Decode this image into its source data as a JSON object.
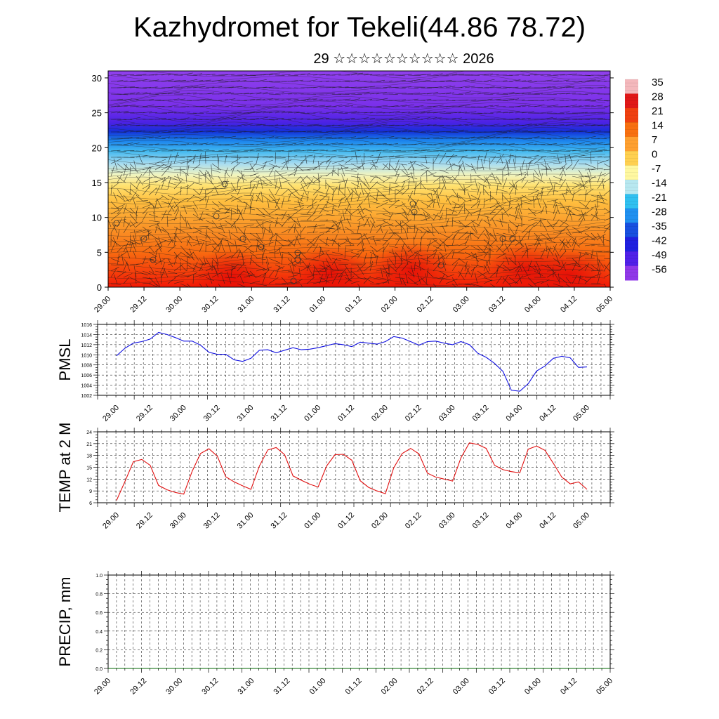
{
  "title": "Kazhydromet for Tekeli(44.86 78.72)",
  "subtitle": "29 ☆☆☆☆☆☆☆☆☆☆ 2026",
  "chart_data": [
    {
      "type": "heatmap",
      "description_key": "cross-section",
      "y_ticks": [
        "0",
        "5",
        "10",
        "15",
        "20",
        "25",
        "30"
      ],
      "ylim": [
        0,
        31
      ],
      "x_ticks": [
        "29.00",
        "29.12",
        "30.00",
        "30.12",
        "31.00",
        "31.12",
        "01.00",
        "01.12",
        "02.00",
        "02.12",
        "03.00",
        "03.12",
        "04.00",
        "04.12",
        "05.00"
      ],
      "colorbar": {
        "labels": [
          "35",
          "28",
          "21",
          "14",
          "7",
          "0",
          "-7",
          "-14",
          "-21",
          "-28",
          "-35",
          "-42",
          "-49",
          "-56"
        ],
        "colors": [
          "#f4b8bc",
          "#e01818",
          "#f04010",
          "#f87010",
          "#ffa030",
          "#ffd050",
          "#fff8a0",
          "#b8e8f0",
          "#30c0f0",
          "#2090f0",
          "#1850e0",
          "#2020e0",
          "#5020e8",
          "#9038e8"
        ]
      }
    },
    {
      "type": "line",
      "ylabel": "PMSL",
      "y_ticks": [
        "1002",
        "1004",
        "1006",
        "1008",
        "1010",
        "1012",
        "1014",
        "1016"
      ],
      "ylim": [
        1002,
        1016
      ],
      "x_ticks": [
        "29.00",
        "29.12",
        "30.00",
        "30.12",
        "31.00",
        "31.12",
        "01.00",
        "01.12",
        "02.00",
        "02.12",
        "03.00",
        "03.12",
        "04.00",
        "04.12",
        "05.00"
      ],
      "series": [
        {
          "color": "#1010e0",
          "values": [
            1009.8,
            1011.3,
            1012.3,
            1012.6,
            1013.1,
            1014.4,
            1014.0,
            1013.4,
            1012.7,
            1012.7,
            1011.9,
            1010.5,
            1010.1,
            1010.1,
            1009.0,
            1008.7,
            1009.3,
            1010.9,
            1011.0,
            1010.4,
            1010.9,
            1011.4,
            1011.0,
            1011.1,
            1011.4,
            1011.8,
            1012.2,
            1012.0,
            1011.6,
            1012.5,
            1012.3,
            1012.1,
            1012.6,
            1013.6,
            1013.3,
            1012.6,
            1011.9,
            1012.6,
            1012.7,
            1012.3,
            1012.0,
            1012.6,
            1012.0,
            1010.3,
            1009.5,
            1008.3,
            1006.7,
            1003.0,
            1002.8,
            1004.3,
            1006.8,
            1007.8,
            1009.3,
            1009.7,
            1009.4,
            1007.5,
            1007.6
          ]
        }
      ]
    },
    {
      "type": "line",
      "ylabel": "TEMP at 2 M",
      "y_ticks": [
        "6",
        "9",
        "12",
        "15",
        "18",
        "21",
        "24"
      ],
      "ylim": [
        6,
        24
      ],
      "x_ticks": [
        "29.00",
        "29.12",
        "30.00",
        "30.12",
        "31.00",
        "31.12",
        "01.00",
        "01.12",
        "02.00",
        "02.12",
        "03.00",
        "03.12",
        "04.00",
        "04.12",
        "05.00"
      ],
      "series": [
        {
          "color": "#e01010",
          "values": [
            6.6,
            11.4,
            16.4,
            17.0,
            15.5,
            10.4,
            9.3,
            8.6,
            8.2,
            14.0,
            18.5,
            19.7,
            17.8,
            12.6,
            11.3,
            10.3,
            9.4,
            15.3,
            19.4,
            20.0,
            18.2,
            12.8,
            11.7,
            10.7,
            10.0,
            15.3,
            18.2,
            18.3,
            16.8,
            11.6,
            9.9,
            9.0,
            8.3,
            14.9,
            18.5,
            19.8,
            18.4,
            13.5,
            12.5,
            12.0,
            11.5,
            17.4,
            21.2,
            20.8,
            19.8,
            15.5,
            14.4,
            13.9,
            13.6,
            19.6,
            20.4,
            19.3,
            16.0,
            12.5,
            10.8,
            11.3,
            9.4
          ]
        }
      ]
    },
    {
      "type": "line",
      "ylabel": "PRECIP, mm",
      "y_ticks": [
        "0.0",
        "0.2",
        "0.4",
        "0.6",
        "0.8",
        "1.0"
      ],
      "ylim": [
        0,
        1
      ],
      "x_ticks": [
        "29.00",
        "29.12",
        "30.00",
        "30.12",
        "31.00",
        "31.12",
        "01.00",
        "01.12",
        "02.00",
        "02.12",
        "03.00",
        "03.12",
        "04.00",
        "04.12",
        "05.00"
      ],
      "series": [
        {
          "color": "#006400",
          "values": [
            0,
            0,
            0,
            0,
            0,
            0,
            0,
            0,
            0,
            0,
            0,
            0,
            0,
            0,
            0,
            0,
            0,
            0,
            0,
            0,
            0,
            0,
            0,
            0,
            0,
            0,
            0,
            0,
            0,
            0,
            0,
            0,
            0,
            0,
            0,
            0,
            0,
            0,
            0,
            0,
            0,
            0,
            0,
            0,
            0,
            0,
            0,
            0,
            0,
            0,
            0,
            0,
            0,
            0,
            0,
            0,
            0,
            0,
            0,
            0,
            0
          ]
        }
      ]
    }
  ]
}
